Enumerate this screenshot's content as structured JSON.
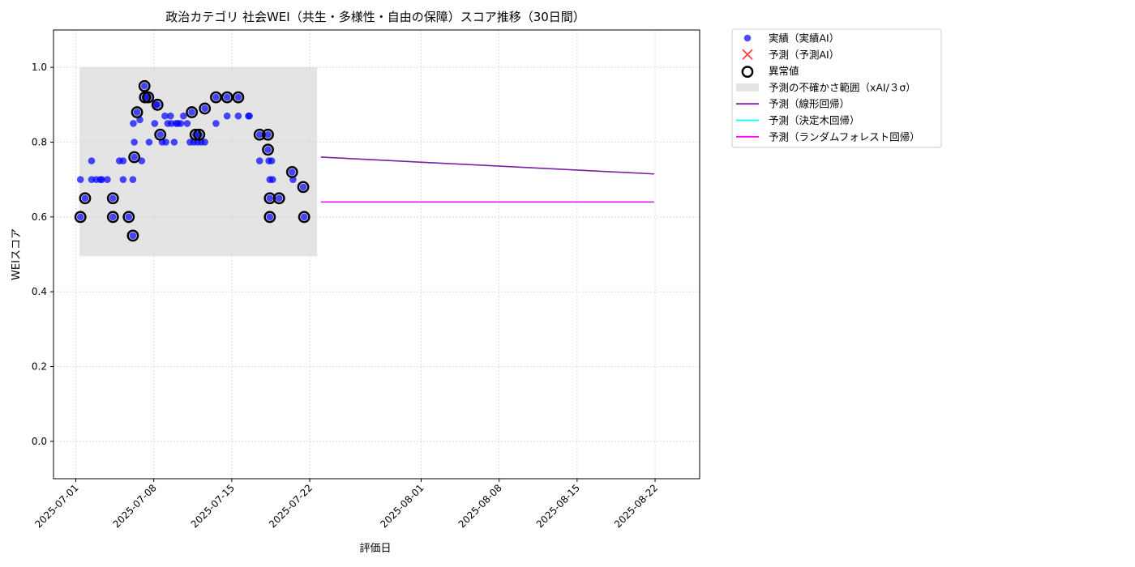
{
  "chart_data": {
    "type": "scatter",
    "title": "政治カテゴリ 社会WEI（共生・多様性・自由の保障）スコア推移（30日間）",
    "xlabel": "評価日",
    "ylabel": "WEIスコア",
    "xlim": [
      "2025-06-29",
      "2025-08-26"
    ],
    "ylim": [
      -0.1,
      1.1
    ],
    "grid": true,
    "legend_placement": "outside-upper-right",
    "x_ticks": [
      "2025-07-01",
      "2025-07-08",
      "2025-07-15",
      "2025-07-22",
      "2025-08-01",
      "2025-08-08",
      "2025-08-15",
      "2025-08-22"
    ],
    "y_ticks": [
      0.0,
      0.2,
      0.4,
      0.6,
      0.8,
      1.0
    ],
    "y_tick_labels": [
      "0.0",
      "0.2",
      "0.4",
      "0.6",
      "0.8",
      "1.0"
    ],
    "uncertainty_band": {
      "name": "予測の不確かさ範囲（xAI/３σ）",
      "x_start": "2025-07-01 08:00",
      "x_end": "2025-07-22 16:00",
      "y_low": 0.495,
      "y_high": 1.0,
      "color": "#d3d3d3"
    },
    "series": [
      {
        "name": "実績（実績AI）",
        "kind": "scatter",
        "color": "#0000ff",
        "points": [
          [
            "2025-07-01 10:00",
            0.6
          ],
          [
            "2025-07-01 10:00",
            0.7
          ],
          [
            "2025-07-01 20:00",
            0.65
          ],
          [
            "2025-07-02 10:00",
            0.7
          ],
          [
            "2025-07-02 10:00",
            0.75
          ],
          [
            "2025-07-02 20:00",
            0.7
          ],
          [
            "2025-07-03 05:00",
            0.7
          ],
          [
            "2025-07-03 08:00",
            0.7
          ],
          [
            "2025-07-03 20:00",
            0.7
          ],
          [
            "2025-07-04 08:00",
            0.65
          ],
          [
            "2025-07-04 08:00",
            0.6
          ],
          [
            "2025-07-04 22:00",
            0.75
          ],
          [
            "2025-07-05 06:00",
            0.75
          ],
          [
            "2025-07-05 06:00",
            0.7
          ],
          [
            "2025-07-05 18:00",
            0.6
          ],
          [
            "2025-07-06 03:00",
            0.55
          ],
          [
            "2025-07-06 03:00",
            0.7
          ],
          [
            "2025-07-06 04:00",
            0.85
          ],
          [
            "2025-07-06 06:00",
            0.8
          ],
          [
            "2025-07-06 06:00",
            0.76
          ],
          [
            "2025-07-06 12:00",
            0.88
          ],
          [
            "2025-07-06 18:00",
            0.86
          ],
          [
            "2025-07-06 22:00",
            0.75
          ],
          [
            "2025-07-07 04:00",
            0.95
          ],
          [
            "2025-07-07 05:00",
            0.92
          ],
          [
            "2025-07-07 12:00",
            0.92
          ],
          [
            "2025-07-07 14:00",
            0.8
          ],
          [
            "2025-07-08 02:00",
            0.85
          ],
          [
            "2025-07-08 04:00",
            0.9
          ],
          [
            "2025-07-08 08:00",
            0.9
          ],
          [
            "2025-07-08 14:00",
            0.82
          ],
          [
            "2025-07-08 18:00",
            0.8
          ],
          [
            "2025-07-09 00:00",
            0.87
          ],
          [
            "2025-07-09 02:00",
            0.8
          ],
          [
            "2025-07-09 06:00",
            0.85
          ],
          [
            "2025-07-09 12:00",
            0.87
          ],
          [
            "2025-07-09 14:00",
            0.85
          ],
          [
            "2025-07-09 20:00",
            0.8
          ],
          [
            "2025-07-10 00:00",
            0.85
          ],
          [
            "2025-07-10 04:00",
            0.85
          ],
          [
            "2025-07-10 10:00",
            0.85
          ],
          [
            "2025-07-10 16:00",
            0.87
          ],
          [
            "2025-07-11 00:00",
            0.85
          ],
          [
            "2025-07-11 06:00",
            0.8
          ],
          [
            "2025-07-11 10:00",
            0.88
          ],
          [
            "2025-07-11 14:00",
            0.8
          ],
          [
            "2025-07-11 18:00",
            0.82
          ],
          [
            "2025-07-11 22:00",
            0.8
          ],
          [
            "2025-07-12 02:00",
            0.82
          ],
          [
            "2025-07-12 06:00",
            0.8
          ],
          [
            "2025-07-12 14:00",
            0.8
          ],
          [
            "2025-07-12 14:00",
            0.89
          ],
          [
            "2025-07-13 14:00",
            0.85
          ],
          [
            "2025-07-13 14:00",
            0.92
          ],
          [
            "2025-07-14 14:00",
            0.92
          ],
          [
            "2025-07-14 14:00",
            0.87
          ],
          [
            "2025-07-15 14:00",
            0.87
          ],
          [
            "2025-07-15 14:00",
            0.92
          ],
          [
            "2025-07-16 12:00",
            0.87
          ],
          [
            "2025-07-16 14:00",
            0.87
          ],
          [
            "2025-07-17 12:00",
            0.75
          ],
          [
            "2025-07-17 12:00",
            0.82
          ],
          [
            "2025-07-18 06:00",
            0.82
          ],
          [
            "2025-07-18 06:00",
            0.78
          ],
          [
            "2025-07-18 08:00",
            0.75
          ],
          [
            "2025-07-18 10:00",
            0.7
          ],
          [
            "2025-07-18 10:00",
            0.65
          ],
          [
            "2025-07-18 10:00",
            0.6
          ],
          [
            "2025-07-18 14:00",
            0.75
          ],
          [
            "2025-07-18 16:00",
            0.7
          ],
          [
            "2025-07-19 06:00",
            0.65
          ],
          [
            "2025-07-20 10:00",
            0.72
          ],
          [
            "2025-07-20 12:00",
            0.7
          ],
          [
            "2025-07-21 10:00",
            0.68
          ],
          [
            "2025-07-21 12:00",
            0.6
          ]
        ]
      },
      {
        "name": "予測（予測AI）",
        "kind": "scatter",
        "color": "#ff0000",
        "points": []
      },
      {
        "name": "異常値",
        "kind": "outlier",
        "color": "#000000",
        "points": [
          [
            "2025-07-01 10:00",
            0.6
          ],
          [
            "2025-07-01 20:00",
            0.65
          ],
          [
            "2025-07-04 08:00",
            0.65
          ],
          [
            "2025-07-04 08:00",
            0.6
          ],
          [
            "2025-07-05 18:00",
            0.6
          ],
          [
            "2025-07-06 03:00",
            0.55
          ],
          [
            "2025-07-06 06:00",
            0.76
          ],
          [
            "2025-07-06 12:00",
            0.88
          ],
          [
            "2025-07-07 04:00",
            0.95
          ],
          [
            "2025-07-07 05:00",
            0.92
          ],
          [
            "2025-07-07 12:00",
            0.92
          ],
          [
            "2025-07-08 08:00",
            0.9
          ],
          [
            "2025-07-08 14:00",
            0.82
          ],
          [
            "2025-07-11 10:00",
            0.88
          ],
          [
            "2025-07-11 18:00",
            0.82
          ],
          [
            "2025-07-12 02:00",
            0.82
          ],
          [
            "2025-07-12 14:00",
            0.89
          ],
          [
            "2025-07-13 14:00",
            0.92
          ],
          [
            "2025-07-14 14:00",
            0.92
          ],
          [
            "2025-07-15 14:00",
            0.92
          ],
          [
            "2025-07-17 12:00",
            0.82
          ],
          [
            "2025-07-18 06:00",
            0.82
          ],
          [
            "2025-07-18 06:00",
            0.78
          ],
          [
            "2025-07-18 10:00",
            0.65
          ],
          [
            "2025-07-18 10:00",
            0.6
          ],
          [
            "2025-07-19 06:00",
            0.65
          ],
          [
            "2025-07-20 10:00",
            0.72
          ],
          [
            "2025-07-21 10:00",
            0.68
          ],
          [
            "2025-07-21 12:00",
            0.6
          ]
        ]
      },
      {
        "name": "予測（線形回帰）",
        "kind": "line",
        "color": "#7b1fa2",
        "points": [
          [
            "2025-07-23 00:00",
            0.76
          ],
          [
            "2025-08-21 22:00",
            0.715
          ]
        ]
      },
      {
        "name": "予測（決定木回帰）",
        "kind": "line",
        "color": "#00ffff",
        "points": [
          [
            "2025-07-23 00:00",
            0.64
          ],
          [
            "2025-08-21 22:00",
            0.64
          ]
        ]
      },
      {
        "name": "予測（ランダムフォレスト回帰）",
        "kind": "line",
        "color": "#ff00ff",
        "points": [
          [
            "2025-07-23 00:00",
            0.64
          ],
          [
            "2025-08-21 22:00",
            0.64
          ]
        ]
      }
    ]
  }
}
